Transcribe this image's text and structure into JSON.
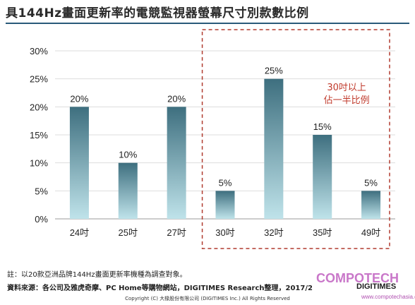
{
  "title": "具144Hz畫面更新率的電競監視器螢幕尺寸別款數比例",
  "chart_data": {
    "type": "bar",
    "categories": [
      "24吋",
      "25吋",
      "27吋",
      "30吋",
      "32吋",
      "35吋",
      "49吋"
    ],
    "values": [
      20,
      10,
      20,
      5,
      25,
      15,
      5
    ],
    "value_labels": [
      "20%",
      "10%",
      "20%",
      "5%",
      "25%",
      "15%",
      "5%"
    ],
    "yticks": [
      "0%",
      "5%",
      "10%",
      "15%",
      "20%",
      "25%",
      "30%"
    ],
    "ylim": [
      0,
      30
    ],
    "grid": true,
    "highlight_range": [
      3,
      6
    ],
    "annotation": [
      "30吋以上",
      "佔一半比例"
    ],
    "colors": {
      "bar_top": "#3e6f7f",
      "bar_bottom": "#bfe3ea",
      "highlight_box": "#b03a2e",
      "annotation": "#c0392b",
      "grid": "#dddddd"
    }
  },
  "footer": {
    "note": "註：以20款亞洲品牌144Hz畫面更新率機種為調查對象。",
    "source": "資料來源：各公司及雅虎奇摩、PC Home等購物網站，DIGITIMES Research整理，2017/2",
    "brand": "DIGITIMES",
    "copyright": "Copyright (C) 大椽股份有限公司 (DIGITIMES Inc.) All Rights Reserved"
  },
  "watermark": {
    "brand": "COMPOTECH",
    "url": "www.compotechasia.com"
  }
}
